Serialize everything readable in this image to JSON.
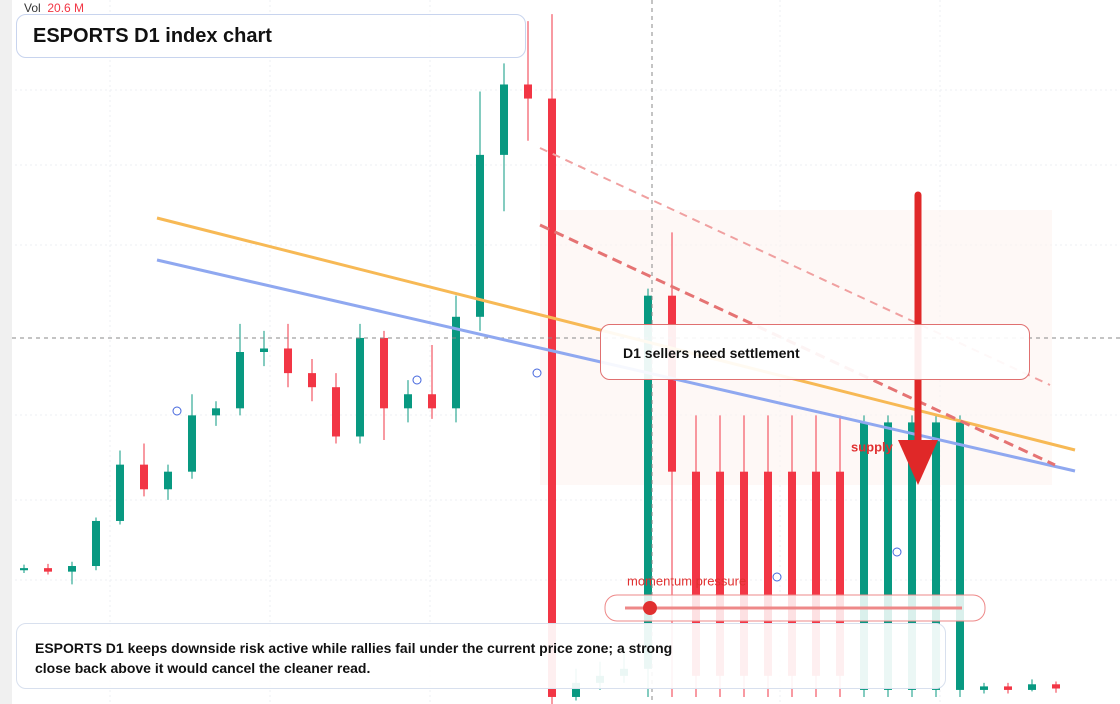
{
  "chart_data": {
    "type": "candlestick",
    "title": "ESPORTS D1 index chart",
    "volume_label": "Vol",
    "volume_reading": "20.6 M",
    "annotations": [
      "D1 sellers need settlement",
      "supply",
      "momentum pressure"
    ],
    "note": "ESPORTS D1 keeps downside risk active while rallies fail under the current price zone; a strong close back above it would cancel the cleaner read.",
    "up_color": "#089981",
    "down_color": "#f23645",
    "ylim": [
      0,
      100
    ],
    "open": [
      19,
      19.3,
      18.8,
      19.6,
      26,
      34,
      30.5,
      33,
      41,
      42,
      50,
      50.5,
      47,
      45,
      38,
      52,
      42,
      44,
      42,
      55,
      78,
      88,
      86,
      1,
      3,
      4,
      5,
      58,
      33,
      33,
      33,
      33,
      33,
      33,
      33,
      2,
      2,
      2,
      2,
      2,
      2,
      2.5,
      2,
      2.8
    ],
    "high": [
      19.8,
      19.9,
      20.2,
      26.5,
      36,
      37,
      34,
      44,
      43,
      54,
      53,
      54,
      49,
      47,
      54,
      53,
      46,
      51,
      58,
      87,
      91,
      97,
      98,
      5,
      6,
      8,
      59,
      67,
      41,
      41,
      41,
      41,
      41,
      41,
      41,
      41,
      41,
      41,
      41,
      41,
      3,
      3,
      3.5,
      3.2
    ],
    "low": [
      18.6,
      18.4,
      17,
      19,
      25.5,
      29.5,
      29,
      32,
      39.5,
      41,
      48,
      45,
      43,
      37,
      37,
      37.5,
      40,
      40.5,
      40,
      53,
      70,
      80,
      0,
      0.5,
      2,
      3,
      1,
      1,
      1,
      1,
      1,
      1,
      1,
      1,
      1,
      1,
      1,
      1,
      1,
      1,
      1.5,
      1.5,
      1.8,
      1.6
    ],
    "close": [
      19.3,
      18.8,
      19.6,
      26,
      34,
      30.5,
      33,
      41,
      42,
      50,
      50.5,
      47,
      45,
      38,
      52,
      42,
      44,
      42,
      55,
      78,
      88,
      86,
      1,
      3,
      4,
      5,
      58,
      33,
      4,
      4,
      4,
      4,
      4,
      4,
      4,
      40,
      40,
      40,
      40,
      40,
      2.5,
      2,
      2.8,
      2.2
    ]
  }
}
